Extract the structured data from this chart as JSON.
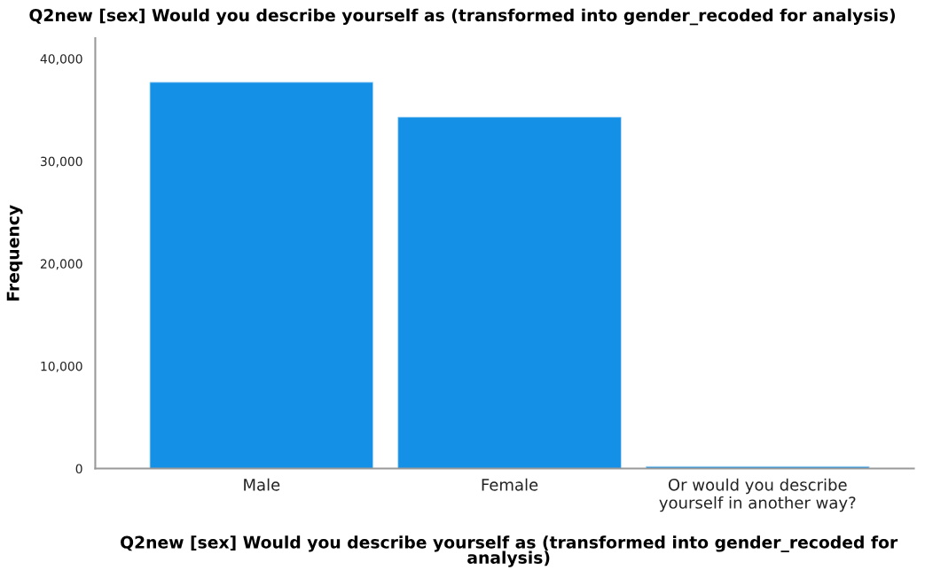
{
  "chart_data": {
    "type": "bar",
    "title": "Q2new [sex] Would you describe yourself as (transformed into gender_recoded for analysis)",
    "xlabel": "Q2new [sex] Would you describe yourself as (transformed into gender_recoded for\nanalysis)",
    "ylabel": "Frequency",
    "categories": [
      "Male",
      "Female",
      "Or would you describe\nyourself in another way?"
    ],
    "values": [
      37700,
      34300,
      200
    ],
    "color": "#1490e6",
    "ylim": [
      0,
      42000
    ],
    "yticks": [
      {
        "value": 0,
        "label": "0"
      },
      {
        "value": 10000,
        "label": "10,000"
      },
      {
        "value": 20000,
        "label": "20,000"
      },
      {
        "value": 30000,
        "label": "30,000"
      },
      {
        "value": 40000,
        "label": "40,000"
      }
    ],
    "grid": false,
    "legend": false
  }
}
